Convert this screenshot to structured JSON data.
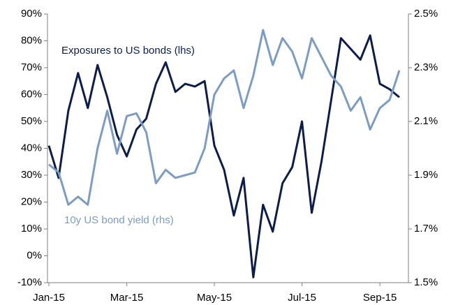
{
  "chart_data": {
    "type": "line",
    "categories": [
      "Jan-15",
      null,
      null,
      null,
      null,
      null,
      null,
      null,
      "Mar-15",
      null,
      null,
      null,
      null,
      null,
      null,
      null,
      null,
      "May-15",
      null,
      null,
      null,
      null,
      null,
      null,
      null,
      null,
      "Jul-15",
      null,
      null,
      null,
      null,
      null,
      null,
      null,
      "Sep-15",
      null,
      null
    ],
    "series": [
      {
        "name": "Exposures to US bonds (lhs)",
        "color": "#0c1d4c",
        "axis": "y",
        "values": [
          41,
          29,
          54,
          68,
          55,
          71,
          59,
          45,
          37,
          47,
          51,
          64,
          72,
          61,
          64,
          63,
          65,
          41,
          32,
          15,
          29,
          -8,
          19,
          9,
          27,
          33,
          50,
          16,
          35,
          58,
          81,
          77,
          73,
          82,
          64,
          62,
          59
        ]
      },
      {
        "name": "10y US bond yield (rhs)",
        "color": "#7a9cc5",
        "axis": "y2",
        "values": [
          1.94,
          1.91,
          1.79,
          1.82,
          1.79,
          2.0,
          2.14,
          1.98,
          2.12,
          2.13,
          2.06,
          1.87,
          1.92,
          1.89,
          1.9,
          1.91,
          2.0,
          2.2,
          2.26,
          2.29,
          2.15,
          2.27,
          2.44,
          2.31,
          2.41,
          2.36,
          2.26,
          2.41,
          2.34,
          2.27,
          2.23,
          2.14,
          2.19,
          2.07,
          2.15,
          2.18,
          2.29
        ]
      }
    ],
    "ylim": [
      -10,
      90
    ],
    "yticks": [
      {
        "value": 90,
        "label": "90%"
      },
      {
        "value": 80,
        "label": "80%"
      },
      {
        "value": 70,
        "label": "70%"
      },
      {
        "value": 60,
        "label": "60%"
      },
      {
        "value": 50,
        "label": "50%"
      },
      {
        "value": 40,
        "label": "40%"
      },
      {
        "value": 30,
        "label": "30%"
      },
      {
        "value": 20,
        "label": "20%"
      },
      {
        "value": 10,
        "label": "10%"
      },
      {
        "value": 0,
        "label": "0%"
      },
      {
        "value": -10,
        "label": "-10%"
      }
    ],
    "y2lim": [
      1.5,
      2.5
    ],
    "y2ticks": [
      {
        "value": 2.5,
        "label": "2.5%"
      },
      {
        "value": 2.3,
        "label": "2.3%"
      },
      {
        "value": 2.1,
        "label": "2.1%"
      },
      {
        "value": 1.9,
        "label": "1.9%"
      },
      {
        "value": 1.7,
        "label": "1.7%"
      },
      {
        "value": 1.5,
        "label": "1.5%"
      }
    ],
    "grid": false
  }
}
